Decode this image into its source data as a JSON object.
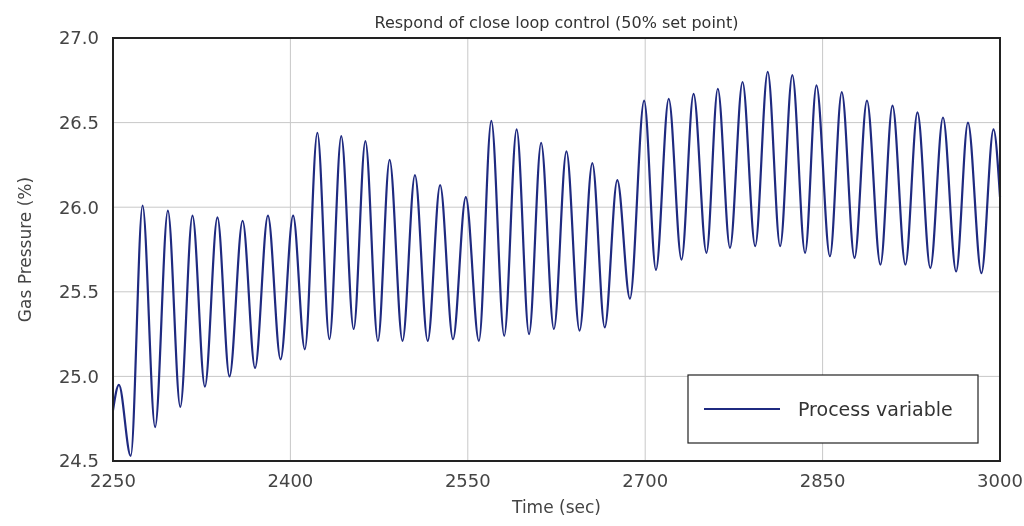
{
  "chart_data": {
    "type": "line",
    "title": "Respond of close loop control (50% set point)",
    "xlabel": "Time (sec)",
    "ylabel": "Gas Pressure (%)",
    "x": [
      2250,
      2255,
      2265,
      2275,
      2285.6,
      2296.4,
      2306.9,
      2317.2,
      2327.7,
      2338.3,
      2348.5,
      2359.6,
      2370.1,
      2381,
      2391.7,
      2402.3,
      2412.2,
      2422.8,
      2433,
      2443,
      2453.5,
      2463.4,
      2474,
      2483.9,
      2494.8,
      2505.3,
      2516.1,
      2526.6,
      2537.5,
      2548.3,
      2559.4,
      2569.9,
      2580.8,
      2591.3,
      2601.8,
      2612,
      2622.8,
      2633.4,
      2644.5,
      2655.3,
      2665.8,
      2676.4,
      2687.1,
      2699.1,
      2709.1,
      2719.9,
      2730.7,
      2740.9,
      2751.8,
      2761.4,
      2771.7,
      2782.3,
      2793,
      2803.6,
      2814.1,
      2824.4,
      2835.2,
      2844.8,
      2856.2,
      2866.2,
      2877,
      2887.5,
      2898.9,
      2909.1,
      2920,
      2930.2,
      2941.1,
      2951.8,
      2962.9,
      2972.9,
      2984.3,
      2994.5,
      3000
    ],
    "series": [
      {
        "name": "Process variable",
        "color": "#1f2a80",
        "values": [
          24.8,
          24.95,
          24.53,
          26.01,
          24.7,
          25.98,
          24.82,
          25.95,
          24.94,
          25.94,
          25.0,
          25.92,
          25.05,
          25.95,
          25.1,
          25.95,
          25.16,
          26.44,
          25.22,
          26.42,
          25.28,
          26.39,
          25.21,
          26.28,
          25.21,
          26.19,
          25.21,
          26.13,
          25.22,
          26.06,
          25.21,
          26.51,
          25.24,
          26.46,
          25.25,
          26.38,
          25.28,
          26.33,
          25.27,
          26.26,
          25.29,
          26.16,
          25.46,
          26.63,
          25.63,
          26.64,
          25.69,
          26.67,
          25.73,
          26.7,
          25.76,
          26.74,
          25.77,
          26.8,
          25.77,
          26.78,
          25.73,
          26.72,
          25.71,
          26.68,
          25.7,
          26.63,
          25.66,
          26.6,
          25.66,
          26.56,
          25.64,
          26.53,
          25.62,
          26.5,
          25.61,
          26.46,
          26.06
        ]
      }
    ],
    "xlim": [
      2250,
      3000
    ],
    "xticks": [
      2250,
      2400,
      2550,
      2700,
      2850,
      3000
    ],
    "ylim": [
      24.5,
      27.0
    ],
    "yticks": [
      24.5,
      {
        "value": 25,
        "label": "25.0"
      },
      25.5,
      {
        "value": 26,
        "label": "26.0"
      },
      26.5,
      {
        "value": 27,
        "label": "27.0"
      }
    ],
    "grid": true,
    "legend": "bottom right",
    "line_style": "solid",
    "marker": "none"
  }
}
